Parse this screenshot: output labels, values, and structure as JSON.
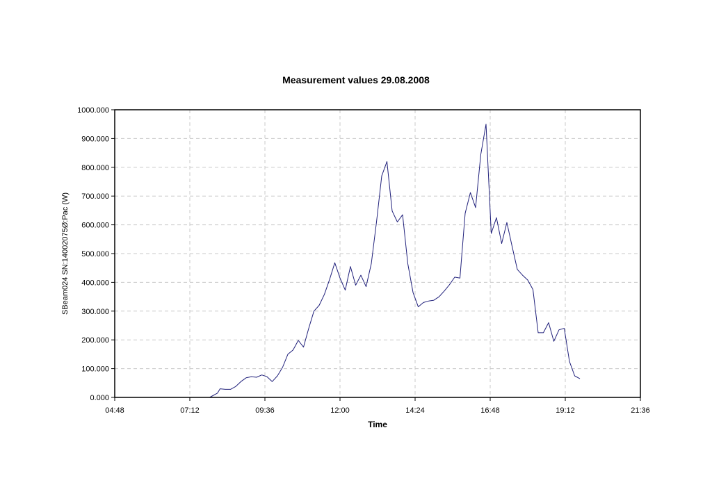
{
  "chart_data": {
    "type": "line",
    "title": "Measurement values 29.08.2008",
    "xlabel": "Time",
    "ylabel": "SBeam024 SN:14002075Ø:Pac (W)",
    "xlim": [
      "04:48",
      "21:36"
    ],
    "ylim": [
      0,
      1000
    ],
    "x_ticks": [
      "04:48",
      "07:12",
      "09:36",
      "12:00",
      "14:24",
      "16:48",
      "19:12",
      "21:36"
    ],
    "y_ticks": [
      "0.000",
      "100.000",
      "200.000",
      "300.000",
      "400.000",
      "500.000",
      "600.000",
      "700.000",
      "800.000",
      "900.000",
      "1000.000"
    ],
    "grid": true,
    "series": [
      {
        "x": [
          "07:50",
          "08:05",
          "08:10",
          "08:20",
          "08:30",
          "08:40",
          "08:50",
          "09:00",
          "09:10",
          "09:20",
          "09:30",
          "09:40",
          "09:50",
          "10:00",
          "10:10",
          "10:20",
          "10:30",
          "10:40",
          "10:50",
          "11:00",
          "11:10",
          "11:20",
          "11:30",
          "11:40",
          "11:50",
          "12:00",
          "12:10",
          "12:20",
          "12:30",
          "12:40",
          "12:50",
          "13:00",
          "13:10",
          "13:20",
          "13:30",
          "13:40",
          "13:50",
          "14:00",
          "14:10",
          "14:20",
          "14:30",
          "14:40",
          "14:50",
          "15:00",
          "15:10",
          "15:20",
          "15:30",
          "15:40",
          "15:50",
          "16:00",
          "16:10",
          "16:20",
          "16:30",
          "16:40",
          "16:50",
          "17:00",
          "17:10",
          "17:20",
          "17:30",
          "17:40",
          "17:50",
          "18:00",
          "18:10",
          "18:20",
          "18:30",
          "18:40",
          "18:50",
          "19:00",
          "19:10",
          "19:20",
          "19:30",
          "19:40"
        ],
        "y": [
          0,
          15,
          30,
          28,
          28,
          38,
          55,
          68,
          72,
          70,
          78,
          72,
          55,
          75,
          105,
          150,
          165,
          198,
          175,
          240,
          300,
          320,
          358,
          410,
          468,
          415,
          373,
          455,
          390,
          425,
          385,
          465,
          610,
          770,
          820,
          648,
          610,
          635,
          465,
          365,
          315,
          330,
          335,
          338,
          350,
          370,
          392,
          418,
          415,
          640,
          712,
          660,
          845,
          950,
          570,
          625,
          535,
          608,
          525,
          445,
          425,
          408,
          375,
          225,
          225,
          260,
          195,
          235,
          240,
          125,
          75,
          65
        ]
      }
    ]
  }
}
